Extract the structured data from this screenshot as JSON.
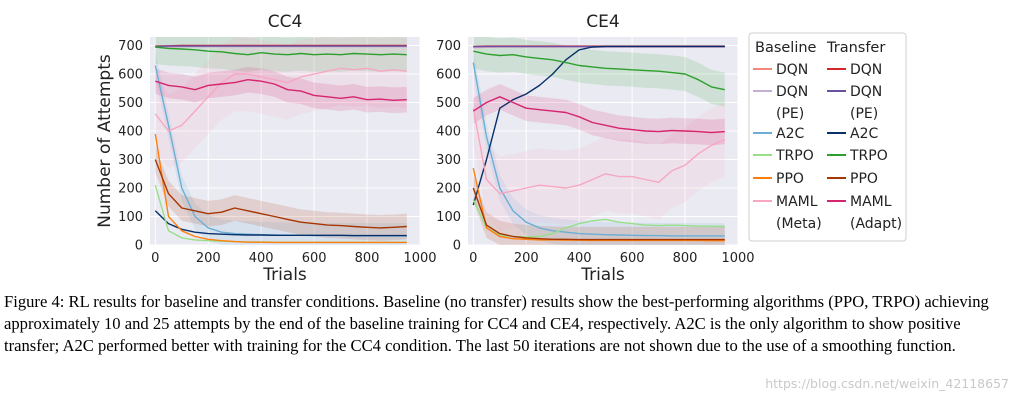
{
  "figure": {
    "caption": "Figure 4: RL results for baseline and transfer conditions. Baseline (no transfer) results show the best-performing algorithms (PPO, TRPO) achieving approximately 10 and 25 attempts by the end of the baseline training for CC4 and CE4, respectively. A2C is the only algorithm to show positive transfer; A2C performed better with training for the CC4 condition. The last 50 iterations are not shown due to the use of a smoothing function.",
    "watermark": "https://blog.csdn.net/weixin_42118657"
  },
  "chart_data": [
    {
      "type": "line",
      "title": "CC4",
      "xlabel": "Trials",
      "ylabel": "Number of Attempts",
      "xlim": [
        -20,
        1000
      ],
      "ylim": [
        0,
        730
      ],
      "xticks": [
        "0",
        "200",
        "400",
        "600",
        "800",
        "1000"
      ],
      "yticks": [
        "0",
        "100",
        "200",
        "300",
        "400",
        "500",
        "600",
        "700"
      ],
      "x": [
        0,
        50,
        100,
        150,
        200,
        250,
        300,
        350,
        400,
        450,
        500,
        550,
        600,
        650,
        700,
        750,
        800,
        850,
        900,
        950
      ],
      "series": [
        {
          "name": "DQN (Baseline)",
          "color": "#f4897b",
          "values": [
            695,
            695,
            696,
            697,
            697,
            697,
            697,
            697,
            697,
            697,
            697,
            697,
            697,
            697,
            697,
            697,
            697,
            697,
            697,
            697
          ]
        },
        {
          "name": "DQN (Transfer)",
          "color": "#d62728",
          "values": [
            698,
            699,
            700,
            700,
            700,
            700,
            700,
            700,
            700,
            700,
            700,
            700,
            700,
            700,
            700,
            700,
            700,
            700,
            700,
            700
          ]
        },
        {
          "name": "DQN (PE) (Baseline)",
          "color": "#c5b0d5",
          "values": [
            695,
            696,
            696,
            696,
            696,
            696,
            696,
            696,
            696,
            696,
            696,
            696,
            696,
            696,
            696,
            696,
            696,
            696,
            696,
            696
          ]
        },
        {
          "name": "DQN (PE) (Transfer)",
          "color": "#6a51a3",
          "values": [
            697,
            698,
            698,
            698,
            698,
            698,
            698,
            698,
            698,
            698,
            698,
            698,
            698,
            698,
            698,
            698,
            698,
            698,
            698,
            698
          ]
        },
        {
          "name": "A2C (Baseline)",
          "color": "#6baed6",
          "values": [
            630,
            420,
            200,
            100,
            60,
            45,
            40,
            38,
            36,
            35,
            34,
            34,
            33,
            33,
            33,
            32,
            32,
            32,
            32,
            32
          ]
        },
        {
          "name": "A2C (Transfer)",
          "color": "#08306b",
          "values": [
            120,
            75,
            55,
            45,
            40,
            38,
            36,
            35,
            35,
            34,
            34,
            34,
            34,
            34,
            34,
            33,
            33,
            33,
            33,
            33
          ]
        },
        {
          "name": "TRPO (Baseline)",
          "color": "#98df8a",
          "values": [
            210,
            50,
            25,
            18,
            15,
            13,
            12,
            11,
            11,
            10,
            10,
            10,
            10,
            10,
            10,
            10,
            10,
            10,
            10,
            10
          ]
        },
        {
          "name": "TRPO (Transfer)",
          "color": "#2ca02c",
          "values": [
            695,
            690,
            688,
            685,
            680,
            678,
            672,
            668,
            675,
            670,
            668,
            672,
            668,
            670,
            668,
            672,
            670,
            668,
            670,
            668
          ]
        },
        {
          "name": "PPO (Baseline)",
          "color": "#ff7f0e",
          "values": [
            390,
            100,
            50,
            30,
            20,
            15,
            12,
            10,
            10,
            9,
            9,
            9,
            9,
            9,
            9,
            9,
            9,
            9,
            9,
            9
          ]
        },
        {
          "name": "PPO (Transfer)",
          "color": "#a63603",
          "values": [
            300,
            180,
            130,
            120,
            110,
            115,
            130,
            120,
            110,
            100,
            90,
            80,
            75,
            70,
            68,
            65,
            62,
            60,
            62,
            65
          ]
        },
        {
          "name": "MAML (Meta)",
          "color": "#f7a7c0",
          "values": [
            460,
            400,
            420,
            470,
            520,
            570,
            600,
            600,
            590,
            580,
            570,
            590,
            600,
            610,
            620,
            615,
            620,
            610,
            615,
            610
          ]
        },
        {
          "name": "MAML (Adapt)",
          "color": "#d6246e",
          "values": [
            575,
            560,
            555,
            545,
            560,
            565,
            570,
            580,
            575,
            565,
            545,
            540,
            525,
            520,
            515,
            520,
            510,
            512,
            508,
            510
          ]
        }
      ]
    },
    {
      "type": "line",
      "title": "CE4",
      "xlabel": "Trials",
      "ylabel": "",
      "xlim": [
        -20,
        1000
      ],
      "ylim": [
        0,
        730
      ],
      "xticks": [
        "0",
        "200",
        "400",
        "600",
        "800",
        "1000"
      ],
      "yticks": [
        "0",
        "100",
        "200",
        "300",
        "400",
        "500",
        "600",
        "700"
      ],
      "x": [
        0,
        50,
        100,
        150,
        200,
        250,
        300,
        350,
        400,
        450,
        500,
        550,
        600,
        650,
        700,
        750,
        800,
        850,
        900,
        950
      ],
      "series": [
        {
          "name": "DQN (Baseline)",
          "color": "#f4897b",
          "values": [
            693,
            694,
            695,
            695,
            695,
            695,
            695,
            695,
            695,
            695,
            695,
            695,
            695,
            695,
            695,
            695,
            695,
            695,
            695,
            695
          ]
        },
        {
          "name": "DQN (Transfer)",
          "color": "#d62728",
          "values": [
            697,
            698,
            698,
            698,
            698,
            698,
            698,
            698,
            698,
            698,
            698,
            698,
            698,
            698,
            698,
            698,
            698,
            698,
            698,
            698
          ]
        },
        {
          "name": "DQN (PE) (Baseline)",
          "color": "#c5b0d5",
          "values": [
            694,
            695,
            695,
            695,
            695,
            695,
            695,
            695,
            695,
            695,
            695,
            695,
            695,
            695,
            695,
            695,
            695,
            695,
            695,
            695
          ]
        },
        {
          "name": "DQN (PE) (Transfer)",
          "color": "#6a51a3",
          "values": [
            696,
            697,
            697,
            697,
            697,
            697,
            697,
            697,
            697,
            697,
            697,
            697,
            697,
            697,
            697,
            697,
            697,
            697,
            697,
            697
          ]
        },
        {
          "name": "A2C (Baseline)",
          "color": "#6baed6",
          "values": [
            640,
            380,
            200,
            120,
            80,
            60,
            50,
            45,
            40,
            38,
            36,
            35,
            34,
            33,
            33,
            32,
            32,
            32,
            32,
            32
          ]
        },
        {
          "name": "A2C (Transfer)",
          "color": "#08306b",
          "values": [
            140,
            300,
            480,
            510,
            530,
            560,
            600,
            650,
            685,
            695,
            697,
            697,
            697,
            697,
            697,
            697,
            697,
            697,
            697,
            697
          ]
        },
        {
          "name": "TRPO (Baseline)",
          "color": "#98df8a",
          "values": [
            160,
            60,
            35,
            30,
            28,
            30,
            40,
            60,
            75,
            85,
            90,
            80,
            75,
            70,
            68,
            70,
            68,
            66,
            66,
            65
          ]
        },
        {
          "name": "TRPO (Transfer)",
          "color": "#2ca02c",
          "values": [
            680,
            670,
            665,
            668,
            660,
            655,
            650,
            640,
            630,
            625,
            620,
            618,
            615,
            612,
            610,
            605,
            600,
            580,
            555,
            545
          ]
        },
        {
          "name": "PPO (Baseline)",
          "color": "#ff7f0e",
          "values": [
            270,
            60,
            30,
            22,
            20,
            18,
            18,
            17,
            17,
            16,
            16,
            16,
            16,
            16,
            16,
            16,
            16,
            16,
            15,
            15
          ]
        },
        {
          "name": "PPO (Transfer)",
          "color": "#a63603",
          "values": [
            200,
            70,
            40,
            30,
            25,
            22,
            20,
            20,
            19,
            19,
            19,
            19,
            19,
            19,
            19,
            19,
            19,
            19,
            19,
            19
          ]
        },
        {
          "name": "MAML (Meta)",
          "color": "#f7a7c0",
          "values": [
            480,
            230,
            180,
            190,
            200,
            210,
            205,
            200,
            210,
            230,
            250,
            240,
            240,
            230,
            220,
            260,
            280,
            320,
            350,
            370
          ]
        },
        {
          "name": "MAML (Adapt)",
          "color": "#d6246e",
          "values": [
            470,
            500,
            520,
            500,
            480,
            475,
            470,
            465,
            450,
            430,
            420,
            410,
            405,
            400,
            398,
            402,
            400,
            398,
            395,
            398
          ]
        }
      ]
    }
  ],
  "legend": {
    "header_baseline": "Baseline",
    "header_transfer": "Transfer",
    "rows": [
      {
        "baseline_label": "DQN",
        "baseline_color": "#f4897b",
        "transfer_label": "DQN",
        "transfer_color": "#d62728"
      },
      {
        "baseline_label": "DQN",
        "baseline_sub": "(PE)",
        "baseline_color": "#c5b0d5",
        "transfer_label": "DQN",
        "transfer_sub": "(PE)",
        "transfer_color": "#6a51a3"
      },
      {
        "baseline_label": "A2C",
        "baseline_color": "#6baed6",
        "transfer_label": "A2C",
        "transfer_color": "#08306b"
      },
      {
        "baseline_label": "TRPO",
        "baseline_color": "#98df8a",
        "transfer_label": "TRPO",
        "transfer_color": "#2ca02c"
      },
      {
        "baseline_label": "PPO",
        "baseline_color": "#ff7f0e",
        "transfer_label": "PPO",
        "transfer_color": "#a63603"
      },
      {
        "baseline_label": "MAML",
        "baseline_sub": "(Meta)",
        "baseline_color": "#f7a7c0",
        "transfer_label": "MAML",
        "transfer_sub": "(Adapt)",
        "transfer_color": "#d6246e"
      }
    ]
  }
}
